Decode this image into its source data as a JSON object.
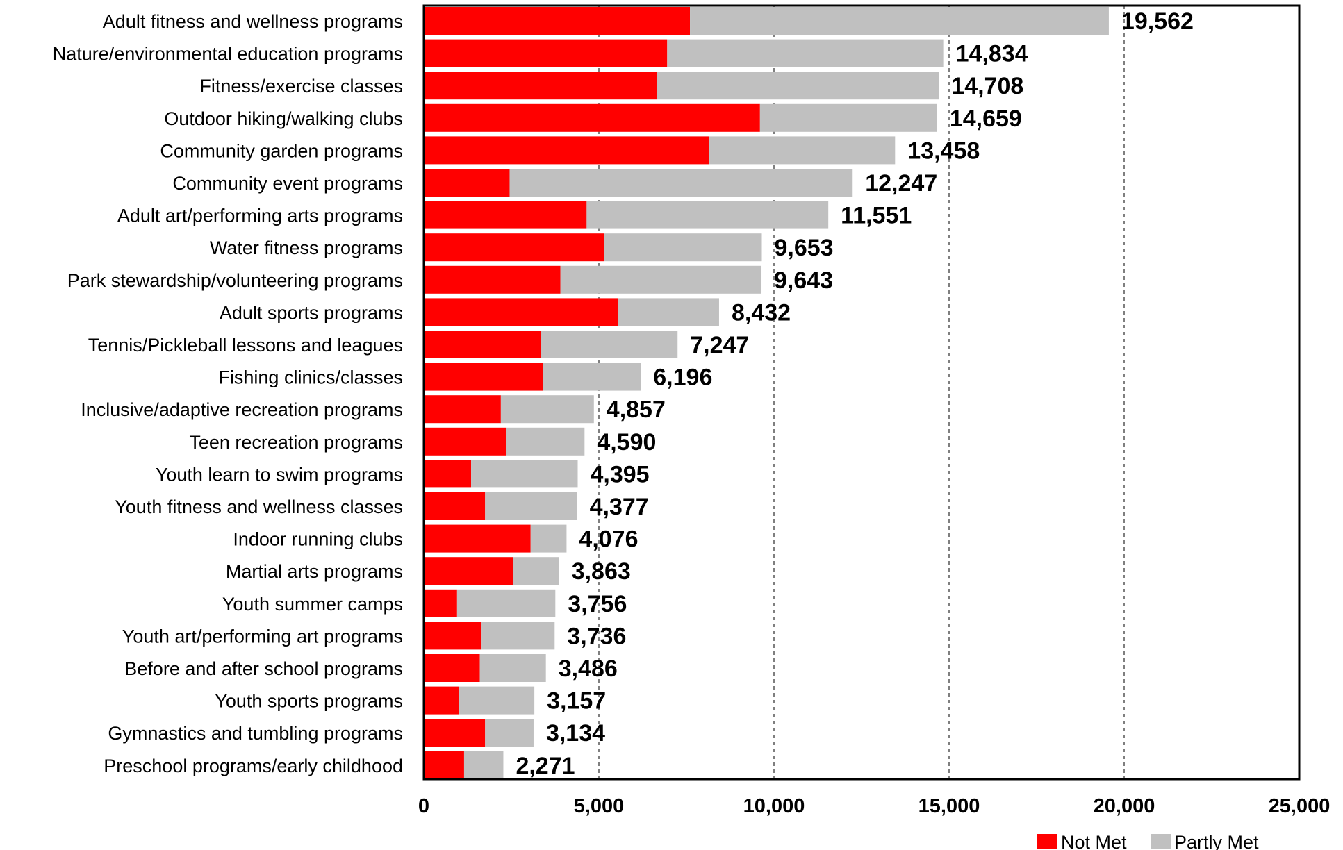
{
  "chart_data": {
    "type": "bar",
    "orientation": "horizontal",
    "stacked": true,
    "categories": [
      "Adult fitness and wellness programs",
      "Nature/environmental education programs",
      "Fitness/exercise classes",
      "Outdoor hiking/walking clubs",
      "Community garden programs",
      "Community event programs",
      "Adult art/performing arts programs",
      "Water fitness programs",
      "Park stewardship/volunteering programs",
      "Adult sports programs",
      "Tennis/Pickleball lessons and leagues",
      "Fishing clinics/classes",
      "Inclusive/adaptive recreation programs",
      "Teen recreation programs",
      "Youth learn to swim programs",
      "Youth fitness and wellness classes",
      "Indoor running clubs",
      "Martial arts programs",
      "Youth summer camps",
      "Youth art/performing art programs",
      "Before and after school programs",
      "Youth sports programs",
      "Gymnastics and tumbling programs",
      "Preschool programs/early childhood"
    ],
    "series": [
      {
        "name": "Not Met",
        "color": "#ff0000",
        "values": [
          7600,
          6950,
          6650,
          9600,
          8150,
          2450,
          4650,
          5150,
          3900,
          5550,
          3350,
          3400,
          2200,
          2350,
          1350,
          1750,
          3050,
          2550,
          950,
          1650,
          1600,
          1000,
          1750,
          1150
        ]
      },
      {
        "name": "Partly Met",
        "color": "#c0c0c0",
        "values": [
          11962,
          7884,
          8058,
          5059,
          5308,
          9797,
          6901,
          4503,
          5743,
          2882,
          3897,
          2796,
          2657,
          2240,
          3045,
          2627,
          1026,
          1313,
          2806,
          2086,
          1886,
          2157,
          1384,
          1121
        ]
      }
    ],
    "totals": [
      "19,562",
      "14,834",
      "14,708",
      "14,659",
      "13,458",
      "12,247",
      "11,551",
      "9,653",
      "9,643",
      "8,432",
      "7,247",
      "6,196",
      "4,857",
      "4,590",
      "4,395",
      "4,377",
      "4,076",
      "3,863",
      "3,756",
      "3,736",
      "3,486",
      "3,157",
      "3,134",
      "2,271"
    ],
    "xlim": [
      0,
      25000
    ],
    "xticks": [
      0,
      5000,
      10000,
      15000,
      20000,
      25000
    ],
    "xtick_labels": [
      "0",
      "5,000",
      "10,000",
      "15,000",
      "20,000",
      "25,000"
    ],
    "grid": "vertical dashed",
    "legend": "bottom-right"
  }
}
